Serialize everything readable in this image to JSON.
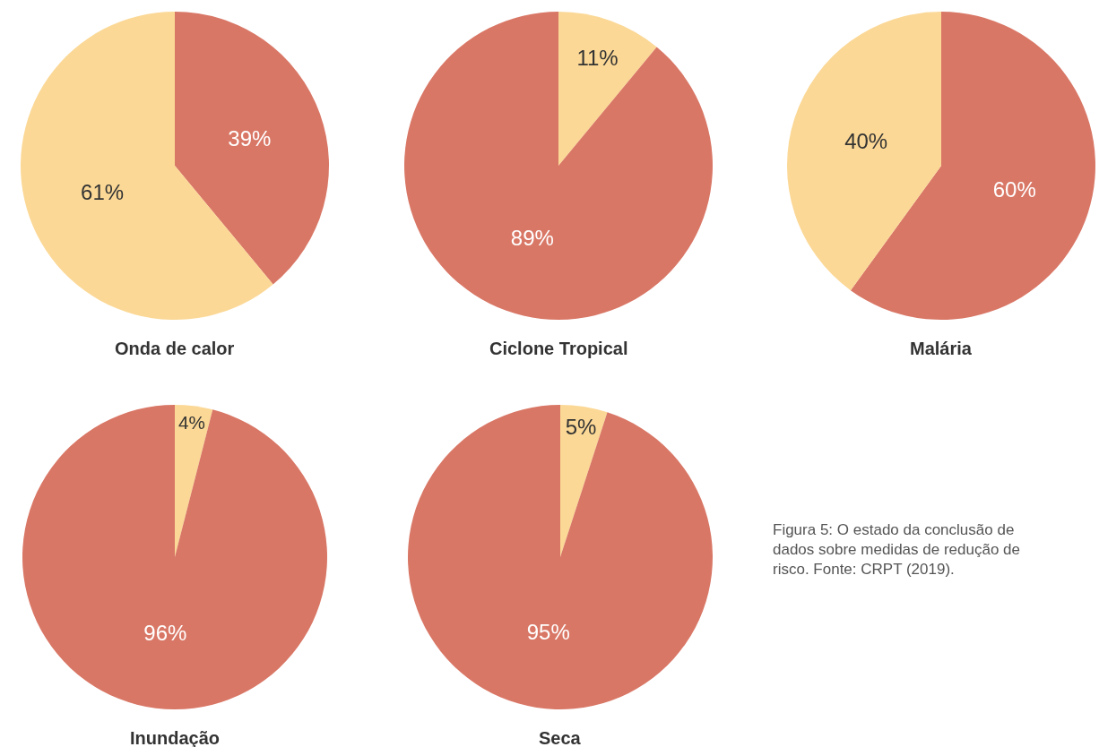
{
  "chart_data": [
    {
      "type": "pie",
      "title": "Onda de calor",
      "categories": [
        null,
        null
      ],
      "values": [
        39,
        61
      ],
      "colors": [
        "#d97766",
        "#fbd896"
      ],
      "value_labels": [
        "39%",
        "61%"
      ]
    },
    {
      "type": "pie",
      "title": "Ciclone Tropical",
      "categories": [
        null,
        null
      ],
      "values": [
        11,
        89
      ],
      "colors": [
        "#fbd896",
        "#d97766"
      ],
      "value_labels": [
        "11%",
        "89%"
      ]
    },
    {
      "type": "pie",
      "title": "Malária",
      "categories": [
        null,
        null
      ],
      "values": [
        60,
        40
      ],
      "colors": [
        "#d97766",
        "#fbd896"
      ],
      "value_labels": [
        "60%",
        "40%"
      ]
    },
    {
      "type": "pie",
      "title": "Inundação",
      "categories": [
        null,
        null
      ],
      "values": [
        4,
        96
      ],
      "colors": [
        "#fbd896",
        "#d97766"
      ],
      "value_labels": [
        "4%",
        "96%"
      ]
    },
    {
      "type": "pie",
      "title": "Seca",
      "categories": [
        null,
        null
      ],
      "values": [
        5,
        95
      ],
      "colors": [
        "#fbd896",
        "#d97766"
      ],
      "value_labels": [
        "5%",
        "95%"
      ],
      "annotations": [
        "Figura 5: O estado da conclusão de dados sobre medidas de redução de risco. Fonte: CRPT (2019)."
      ]
    }
  ]
}
